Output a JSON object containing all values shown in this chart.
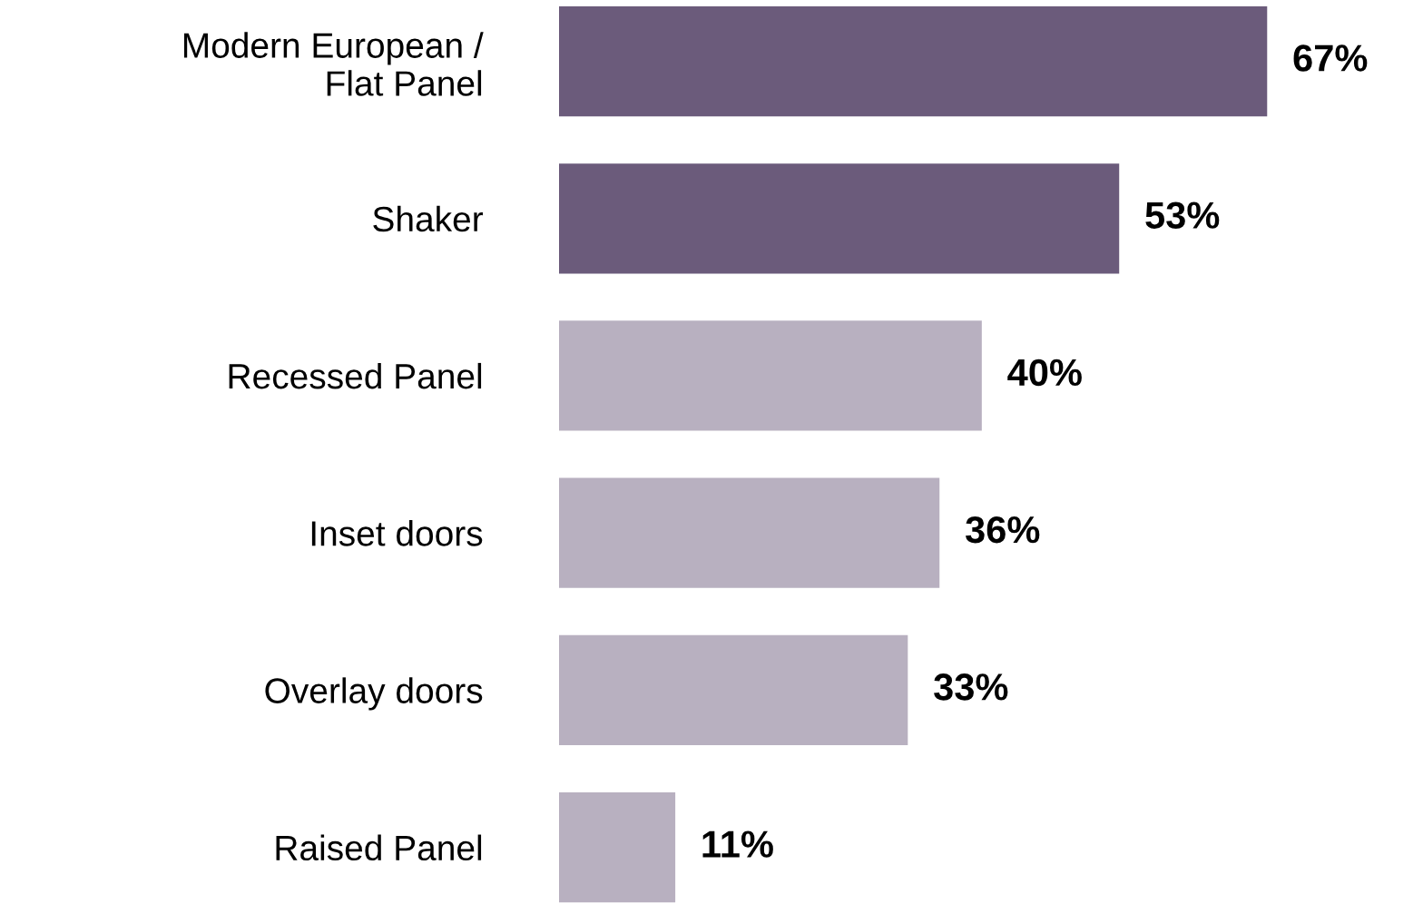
{
  "chart_data": {
    "type": "bar",
    "orientation": "horizontal",
    "categories": [
      "Modern European /\nFlat Panel",
      "Shaker",
      "Recessed Panel",
      "Inset doors",
      "Overlay doors",
      "Raised Panel"
    ],
    "values": [
      67,
      53,
      40,
      36,
      33,
      11
    ],
    "colors": [
      "#6b5b7b",
      "#6b5b7b",
      "#b8b0c0",
      "#b8b0c0",
      "#b8b0c0",
      "#b8b0c0"
    ],
    "value_labels": [
      "67%",
      "53%",
      "40%",
      "36%",
      "33%",
      "11%"
    ],
    "tick_labels": "y",
    "grid": false,
    "legend": false
  }
}
